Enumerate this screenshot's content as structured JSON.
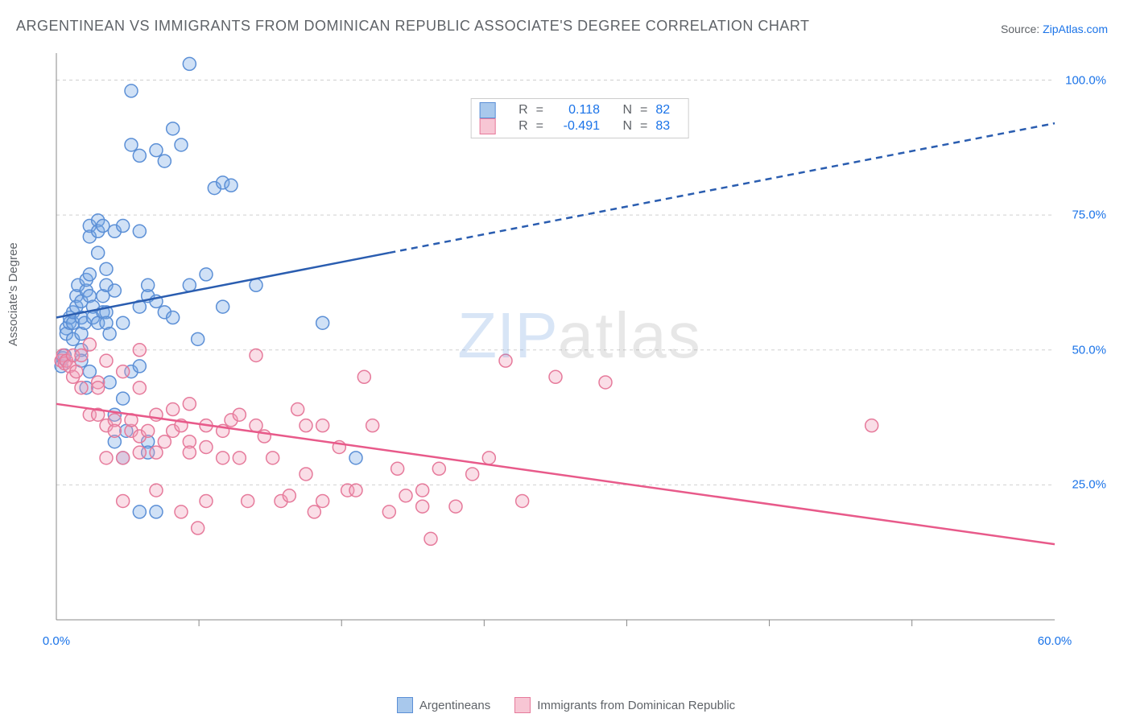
{
  "title": "ARGENTINEAN VS IMMIGRANTS FROM DOMINICAN REPUBLIC ASSOCIATE'S DEGREE CORRELATION CHART",
  "source_label": "Source:",
  "source_name": "ZipAtlas.com",
  "ylabel": "Associate's Degree",
  "watermark_z": "ZIP",
  "watermark_rest": "atlas",
  "chart": {
    "type": "scatter",
    "xlim": [
      0,
      60
    ],
    "ylim": [
      0,
      105
    ],
    "x_ticks": [
      0,
      60
    ],
    "x_tick_labels": [
      "0.0%",
      "60.0%"
    ],
    "x_minor_ticks": [
      8.57,
      17.14,
      25.71,
      34.28,
      42.85,
      51.42
    ],
    "y_ticks": [
      25,
      50,
      75,
      100
    ],
    "y_tick_labels": [
      "25.0%",
      "50.0%",
      "75.0%",
      "100.0%"
    ],
    "grid_color": "#d0d0d0",
    "axis_color": "#888888",
    "background_color": "#ffffff",
    "marker_radius": 8,
    "marker_stroke_width": 1.5,
    "series": [
      {
        "name": "Argentineans",
        "fill": "rgba(120,170,230,0.35)",
        "stroke": "#5b8fd6",
        "swatch_fill": "#a8c8ec",
        "swatch_stroke": "#5b8fd6",
        "r_value": "0.118",
        "n_value": "82",
        "trend": {
          "x1": 0,
          "y1": 56,
          "x2_solid": 20,
          "y2_solid": 68,
          "x2": 60,
          "y2": 92,
          "color": "#2a5db0",
          "width": 2.5
        },
        "points": [
          [
            0.3,
            47
          ],
          [
            0.4,
            48.5
          ],
          [
            0.5,
            49
          ],
          [
            0.6,
            54
          ],
          [
            0.6,
            53
          ],
          [
            0.8,
            55
          ],
          [
            0.8,
            56
          ],
          [
            1,
            55
          ],
          [
            1,
            57
          ],
          [
            1,
            52
          ],
          [
            1.2,
            60
          ],
          [
            1.2,
            58
          ],
          [
            1.3,
            62
          ],
          [
            1.5,
            59
          ],
          [
            1.5,
            56
          ],
          [
            1.5,
            53
          ],
          [
            1.5,
            50
          ],
          [
            1.5,
            48
          ],
          [
            1.7,
            55
          ],
          [
            1.8,
            61
          ],
          [
            1.8,
            63
          ],
          [
            1.8,
            43
          ],
          [
            2,
            64
          ],
          [
            2,
            71
          ],
          [
            2,
            73
          ],
          [
            2,
            46
          ],
          [
            2,
            60
          ],
          [
            2.2,
            58
          ],
          [
            2.2,
            56
          ],
          [
            2.5,
            74
          ],
          [
            2.5,
            72
          ],
          [
            2.5,
            68
          ],
          [
            2.5,
            55
          ],
          [
            2.8,
            73
          ],
          [
            2.8,
            60
          ],
          [
            2.8,
            57
          ],
          [
            3,
            62
          ],
          [
            3,
            57
          ],
          [
            3,
            55
          ],
          [
            3,
            65
          ],
          [
            3.2,
            53
          ],
          [
            3.2,
            44
          ],
          [
            3.5,
            72
          ],
          [
            3.5,
            61
          ],
          [
            3.5,
            38
          ],
          [
            3.5,
            33
          ],
          [
            4,
            73
          ],
          [
            4,
            55
          ],
          [
            4,
            41
          ],
          [
            4,
            30
          ],
          [
            4.2,
            35
          ],
          [
            4.5,
            98
          ],
          [
            4.5,
            88
          ],
          [
            4.5,
            46
          ],
          [
            5,
            72
          ],
          [
            5,
            86
          ],
          [
            5,
            58
          ],
          [
            5,
            20
          ],
          [
            5,
            47
          ],
          [
            5.5,
            60
          ],
          [
            5.5,
            62
          ],
          [
            5.5,
            33
          ],
          [
            5.5,
            31
          ],
          [
            6,
            87
          ],
          [
            6,
            59
          ],
          [
            6,
            20
          ],
          [
            6.5,
            57
          ],
          [
            6.5,
            85
          ],
          [
            7,
            91
          ],
          [
            7,
            56
          ],
          [
            7.5,
            88
          ],
          [
            8,
            103
          ],
          [
            8,
            62
          ],
          [
            8.5,
            52
          ],
          [
            9,
            64
          ],
          [
            9.5,
            80
          ],
          [
            10,
            81
          ],
          [
            10,
            58
          ],
          [
            10.5,
            80.5
          ],
          [
            12,
            62
          ],
          [
            16,
            55
          ],
          [
            18,
            30
          ]
        ]
      },
      {
        "name": "Immigrants from Dominican Republic",
        "fill": "rgba(240,160,185,0.35)",
        "stroke": "#e67a9b",
        "swatch_fill": "#f7c6d4",
        "swatch_stroke": "#e67a9b",
        "r_value": "-0.491",
        "n_value": "83",
        "trend": {
          "x1": 0,
          "y1": 40,
          "x2_solid": 60,
          "y2_solid": 14,
          "x2": 60,
          "y2": 14,
          "color": "#e85a8a",
          "width": 2.5
        },
        "points": [
          [
            0.3,
            48
          ],
          [
            0.4,
            49
          ],
          [
            0.5,
            47.5
          ],
          [
            0.6,
            48
          ],
          [
            0.8,
            47
          ],
          [
            1,
            45
          ],
          [
            1,
            49
          ],
          [
            1.2,
            46
          ],
          [
            1.5,
            49
          ],
          [
            1.5,
            43
          ],
          [
            2,
            38
          ],
          [
            2,
            51
          ],
          [
            2.5,
            44
          ],
          [
            2.5,
            43
          ],
          [
            2.5,
            38
          ],
          [
            3,
            48
          ],
          [
            3,
            36
          ],
          [
            3,
            30
          ],
          [
            3.5,
            37
          ],
          [
            3.5,
            35
          ],
          [
            4,
            46
          ],
          [
            4,
            30
          ],
          [
            4,
            22
          ],
          [
            4.5,
            35
          ],
          [
            4.5,
            37
          ],
          [
            5,
            50
          ],
          [
            5,
            43
          ],
          [
            5,
            34
          ],
          [
            5,
            31
          ],
          [
            5.5,
            35
          ],
          [
            6,
            38
          ],
          [
            6,
            24
          ],
          [
            6,
            31
          ],
          [
            6.5,
            33
          ],
          [
            7,
            39
          ],
          [
            7,
            35
          ],
          [
            7.5,
            36
          ],
          [
            7.5,
            20
          ],
          [
            8,
            40
          ],
          [
            8,
            33
          ],
          [
            8,
            31
          ],
          [
            8.5,
            17
          ],
          [
            9,
            36
          ],
          [
            9,
            32
          ],
          [
            9,
            22
          ],
          [
            10,
            35
          ],
          [
            10,
            30
          ],
          [
            10.5,
            37
          ],
          [
            11,
            30
          ],
          [
            11,
            38
          ],
          [
            11.5,
            22
          ],
          [
            12,
            49
          ],
          [
            12,
            36
          ],
          [
            12.5,
            34
          ],
          [
            13,
            30
          ],
          [
            13.5,
            22
          ],
          [
            14,
            23
          ],
          [
            14.5,
            39
          ],
          [
            15,
            27
          ],
          [
            15,
            36
          ],
          [
            15.5,
            20
          ],
          [
            16,
            36
          ],
          [
            16,
            22
          ],
          [
            17,
            32
          ],
          [
            17.5,
            24
          ],
          [
            18,
            24
          ],
          [
            18.5,
            45
          ],
          [
            19,
            36
          ],
          [
            20,
            20
          ],
          [
            20.5,
            28
          ],
          [
            21,
            23
          ],
          [
            22,
            24
          ],
          [
            22,
            21
          ],
          [
            22.5,
            15
          ],
          [
            23,
            28
          ],
          [
            24,
            21
          ],
          [
            25,
            27
          ],
          [
            26,
            30
          ],
          [
            27,
            48
          ],
          [
            28,
            22
          ],
          [
            30,
            45
          ],
          [
            33,
            44
          ],
          [
            49,
            36
          ]
        ]
      }
    ]
  }
}
